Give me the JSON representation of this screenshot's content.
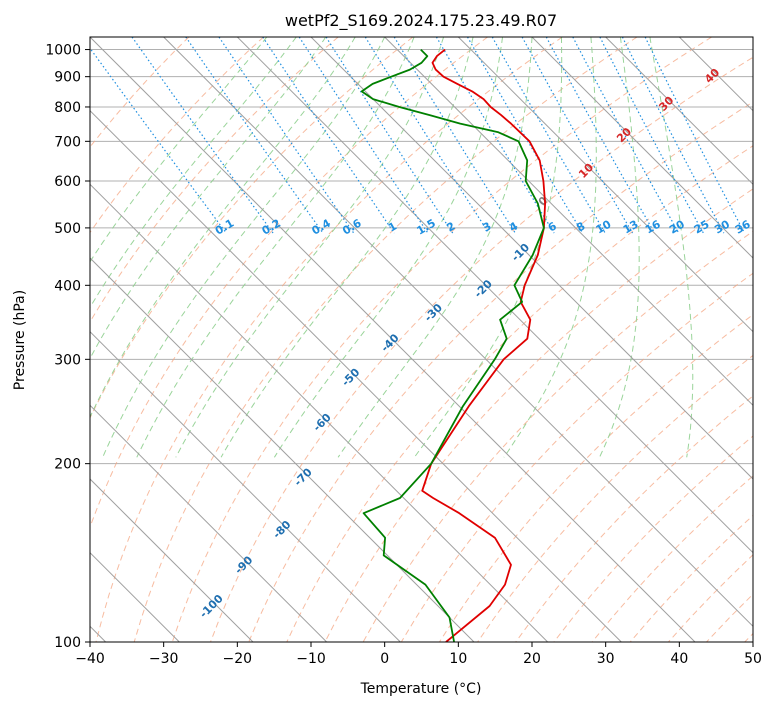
{
  "chart_data": {
    "type": "line",
    "subtype": "skew-t log-p diagram",
    "title": "wetPf2_S169.2024.175.23.49.R07",
    "xlabel": "Temperature (°C)",
    "ylabel": "Pressure (hPa)",
    "xlim": [
      -40,
      50
    ],
    "ylim": [
      1050,
      100
    ],
    "y_scale": "log",
    "grid": true,
    "x_ticks": [
      -40,
      -30,
      -20,
      -10,
      0,
      10,
      20,
      30,
      40,
      50
    ],
    "y_ticks": [
      100,
      200,
      300,
      400,
      500,
      600,
      700,
      800,
      900,
      1000
    ],
    "isotherm_labels": [
      "-100",
      "-90",
      "-80",
      "-70",
      "-60",
      "-50",
      "-40",
      "-30",
      "-20",
      "-10",
      "0",
      "10",
      "20",
      "30",
      "40"
    ],
    "mixing_ratio_labels": [
      "0.1",
      "0.2",
      "0.4",
      "0.6",
      "1",
      "1.5",
      "2",
      "3",
      "4",
      "6",
      "8",
      "10",
      "13",
      "16",
      "20",
      "25",
      "30",
      "36"
    ],
    "colors": {
      "temperature": "#e00000",
      "dewpoint": "#008000",
      "isotherm": "#a0a0a0",
      "dry_adiabat": "#f4a582",
      "moist_adiabat": "#8fcf8f",
      "mixing_ratio": "#1f8fe0",
      "isotherm_label_cold": "#1f6fb0",
      "isotherm_label_warm": "#d62728"
    },
    "series": [
      {
        "key": "temperature",
        "points": [
          {
            "p": 1000,
            "t": 6.5
          },
          {
            "p": 975,
            "t": 4.5
          },
          {
            "p": 950,
            "t": 3.0
          },
          {
            "p": 925,
            "t": 2.5
          },
          {
            "p": 900,
            "t": 2.6
          },
          {
            "p": 875,
            "t": 3.5
          },
          {
            "p": 850,
            "t": 4.5
          },
          {
            "p": 825,
            "t": 5.0
          },
          {
            "p": 800,
            "t": 4.9
          },
          {
            "p": 775,
            "t": 5.2
          },
          {
            "p": 750,
            "t": 5.4
          },
          {
            "p": 700,
            "t": 5.5
          },
          {
            "p": 650,
            "t": 4.3
          },
          {
            "p": 600,
            "t": 2.0
          },
          {
            "p": 550,
            "t": -0.8
          },
          {
            "p": 500,
            "t": -4.3
          },
          {
            "p": 450,
            "t": -8.8
          },
          {
            "p": 400,
            "t": -14.7
          },
          {
            "p": 375,
            "t": -17.5
          },
          {
            "p": 350,
            "t": -18.6
          },
          {
            "p": 325,
            "t": -21.6
          },
          {
            "p": 300,
            "t": -27.6
          },
          {
            "p": 250,
            "t": -38.7
          },
          {
            "p": 200,
            "t": -51.6
          },
          {
            "p": 180,
            "t": -56.5
          },
          {
            "p": 175,
            "t": -56.0
          },
          {
            "p": 165,
            "t": -54.5
          },
          {
            "p": 150,
            "t": -53.0
          },
          {
            "p": 135,
            "t": -54.5
          },
          {
            "p": 125,
            "t": -58.0
          },
          {
            "p": 115,
            "t": -63.0
          },
          {
            "p": 100,
            "t": -73.8
          }
        ]
      },
      {
        "key": "dewpoint",
        "points": [
          {
            "p": 1000,
            "t": 3.2
          },
          {
            "p": 975,
            "t": 3.2
          },
          {
            "p": 950,
            "t": 1.5
          },
          {
            "p": 925,
            "t": -1.0
          },
          {
            "p": 900,
            "t": -4.5
          },
          {
            "p": 875,
            "t": -8.0
          },
          {
            "p": 850,
            "t": -10.5
          },
          {
            "p": 825,
            "t": -10.0
          },
          {
            "p": 800,
            "t": -7.5
          },
          {
            "p": 775,
            "t": -4.5
          },
          {
            "p": 750,
            "t": -1.5
          },
          {
            "p": 725,
            "t": 2.5
          },
          {
            "p": 700,
            "t": 4.0
          },
          {
            "p": 650,
            "t": 2.6
          },
          {
            "p": 600,
            "t": -0.4
          },
          {
            "p": 550,
            "t": -1.8
          },
          {
            "p": 500,
            "t": -4.3
          },
          {
            "p": 450,
            "t": -9.5
          },
          {
            "p": 400,
            "t": -16.1
          },
          {
            "p": 375,
            "t": -17.3
          },
          {
            "p": 350,
            "t": -22.7
          },
          {
            "p": 325,
            "t": -24.4
          },
          {
            "p": 300,
            "t": -28.8
          },
          {
            "p": 250,
            "t": -39.5
          },
          {
            "p": 200,
            "t": -51.6
          },
          {
            "p": 175,
            "t": -60.5
          },
          {
            "p": 165,
            "t": -67.5
          },
          {
            "p": 150,
            "t": -67.9
          },
          {
            "p": 140,
            "t": -70.5
          },
          {
            "p": 125,
            "t": -68.8
          },
          {
            "p": 110,
            "t": -70.0
          },
          {
            "p": 100,
            "t": -72.7
          }
        ]
      }
    ]
  }
}
